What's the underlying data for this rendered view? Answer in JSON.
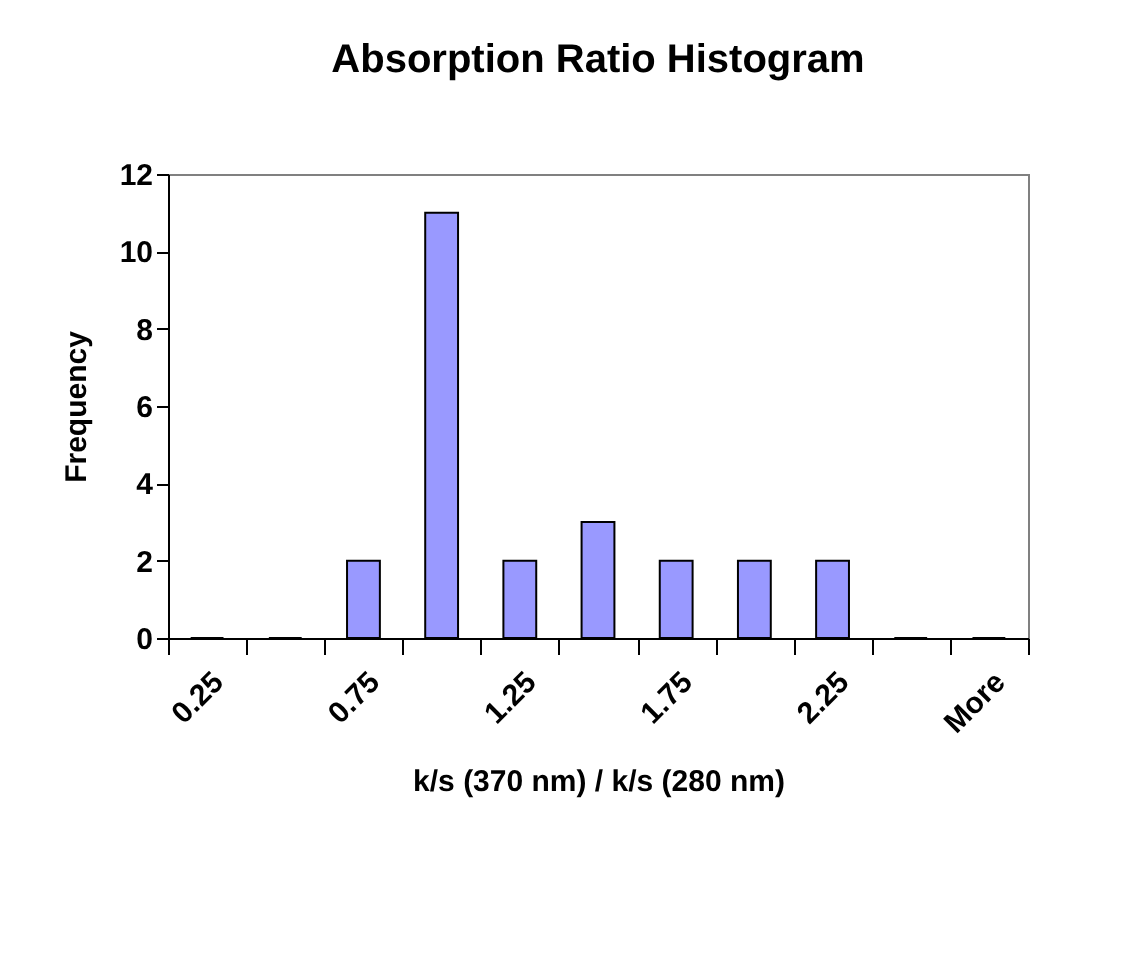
{
  "chart_data": {
    "type": "bar",
    "title": "Absorption Ratio Histogram",
    "xlabel": "k/s (370 nm)  /  k/s (280 nm)",
    "ylabel": "Frequency",
    "categories": [
      "0.25",
      null,
      "0.75",
      null,
      "1.25",
      null,
      "1.75",
      null,
      "2.25",
      null,
      "More"
    ],
    "values": [
      0,
      0,
      2,
      11,
      2,
      3,
      2,
      2,
      2,
      0,
      0
    ],
    "color": "#9999ff",
    "ylim": [
      0,
      12
    ],
    "yticks": [
      0,
      2,
      4,
      6,
      8,
      10,
      12
    ],
    "grid": false
  }
}
